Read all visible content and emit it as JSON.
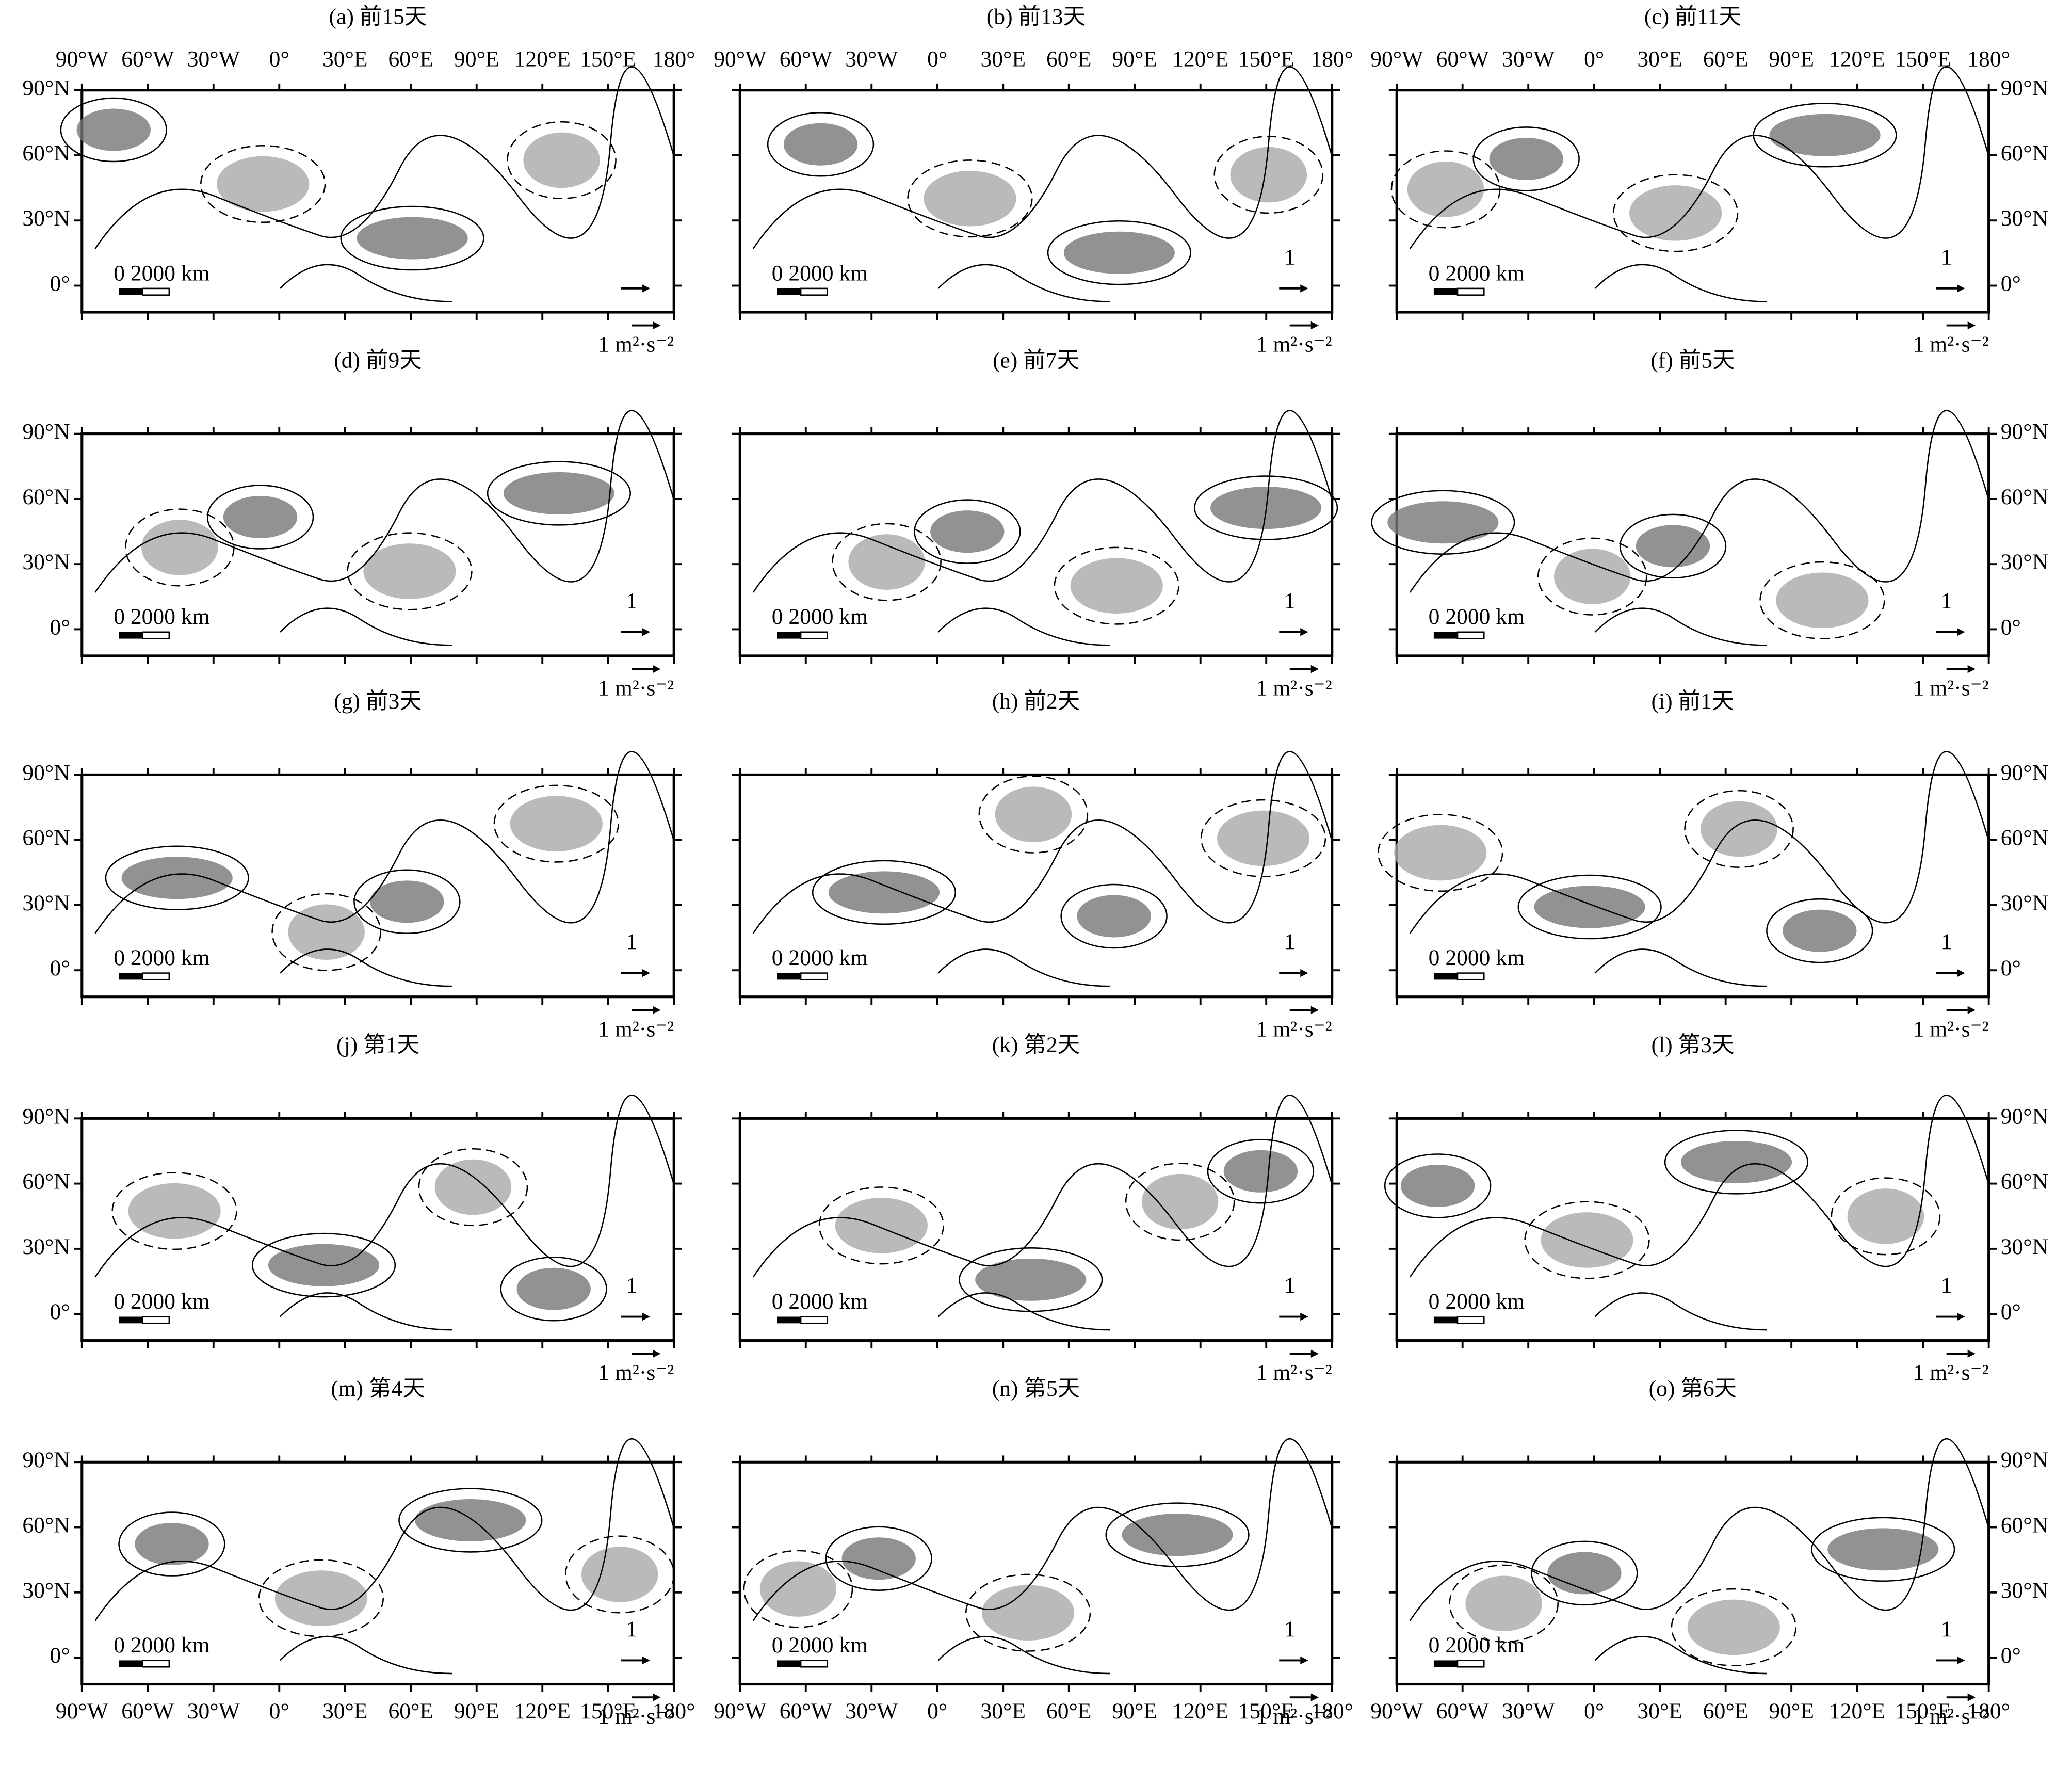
{
  "panels": [
    {
      "title": "(a) 前15天"
    },
    {
      "title": "(b) 前13天"
    },
    {
      "title": "(c) 前11天"
    },
    {
      "title": "(d) 前9天"
    },
    {
      "title": "(e) 前7天"
    },
    {
      "title": "(f) 前5天"
    },
    {
      "title": "(g) 前3天"
    },
    {
      "title": "(h) 前2天"
    },
    {
      "title": "(i) 前1天"
    },
    {
      "title": "(j) 第1天"
    },
    {
      "title": "(k) 第2天"
    },
    {
      "title": "(l) 第3天"
    },
    {
      "title": "(m) 第4天"
    },
    {
      "title": "(n) 第5天"
    },
    {
      "title": "(o) 第6天"
    }
  ],
  "lon_labels": [
    "90°W",
    "60°W",
    "30°W",
    "0°",
    "30°E",
    "60°E",
    "90°E",
    "120°E",
    "150°E",
    "180°"
  ],
  "lat_labels": [
    "90°N",
    "60°N",
    "30°N",
    "0°"
  ],
  "scale_bar": "0  2000 km",
  "vector_ref_value": "1",
  "vector_ref_label": "1 m²·s⁻²"
}
